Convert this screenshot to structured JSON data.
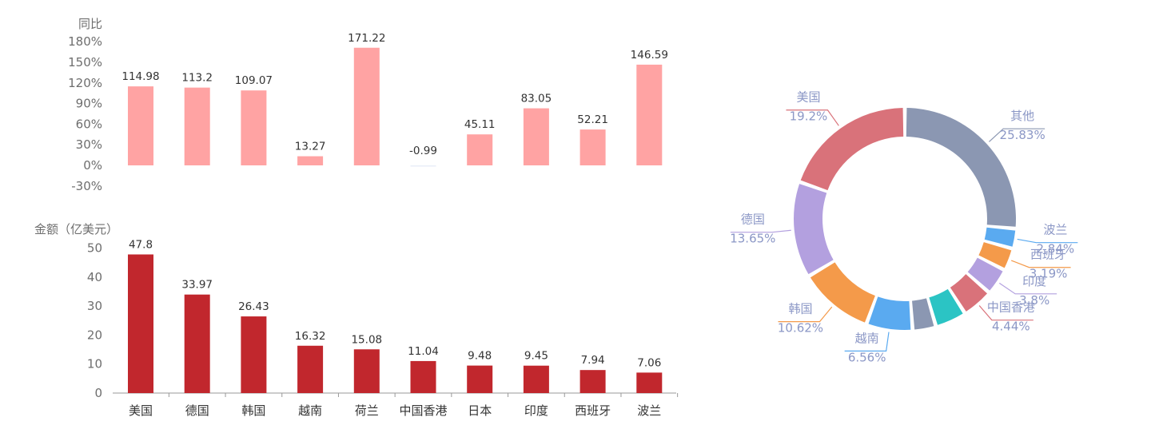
{
  "chart_data": [
    {
      "type": "bar",
      "ylabel": "同比",
      "y_unit": "%",
      "ylim": [
        -30,
        180
      ],
      "yticks": [
        180,
        150,
        120,
        90,
        60,
        30,
        0,
        -30
      ],
      "categories": [
        "美国",
        "德国",
        "韩国",
        "越南",
        "荷兰",
        "中国香港",
        "日本",
        "印度",
        "西班牙",
        "波兰"
      ],
      "values": [
        114.98,
        113.2,
        109.07,
        13.27,
        171.22,
        -0.99,
        45.11,
        83.05,
        52.21,
        146.59
      ],
      "value_labels": [
        "114.98",
        "113.2",
        "109.07",
        "13.27",
        "171.22",
        "-0.99",
        "45.11",
        "83.05",
        "52.21",
        "146.59"
      ],
      "bar_color": "#ffa3a3",
      "negative_bar_color": "#e8eef8"
    },
    {
      "type": "bar",
      "ylabel": "金额（亿美元）",
      "ylim": [
        0,
        50
      ],
      "yticks": [
        50,
        40,
        30,
        20,
        10,
        0
      ],
      "categories": [
        "美国",
        "德国",
        "韩国",
        "越南",
        "荷兰",
        "中国香港",
        "日本",
        "印度",
        "西班牙",
        "波兰"
      ],
      "values": [
        47.8,
        33.97,
        26.43,
        16.32,
        15.08,
        11.04,
        9.48,
        9.45,
        7.94,
        7.06
      ],
      "value_labels": [
        "47.8",
        "33.97",
        "26.43",
        "16.32",
        "15.08",
        "11.04",
        "9.48",
        "9.45",
        "7.94",
        "7.06"
      ],
      "bar_color": "#c1272d"
    },
    {
      "type": "pie",
      "donut": true,
      "slices": [
        {
          "name": "其他",
          "value": 25.83,
          "label": "25.83%",
          "color": "#8b97b2"
        },
        {
          "name": "波兰",
          "value": 2.84,
          "label": "2.84%",
          "color": "#5aaaf0"
        },
        {
          "name": "西班牙",
          "value": 3.19,
          "label": "3.19%",
          "color": "#f49a4a"
        },
        {
          "name": "印度",
          "value": 3.8,
          "label": "3.8%",
          "color": "#b3a0df"
        },
        {
          "name": "中国香港",
          "value": 4.44,
          "label": "4.44%",
          "color": "#d9727a"
        },
        {
          "name": "",
          "value": 4.44,
          "label": "",
          "color": "#2bc4c4"
        },
        {
          "name": "",
          "value": 3.3,
          "label": "",
          "color": "#8b97b2"
        },
        {
          "name": "越南",
          "value": 6.56,
          "label": "6.56%",
          "color": "#5aaaf0"
        },
        {
          "name": "韩国",
          "value": 10.62,
          "label": "10.62%",
          "color": "#f49a4a"
        },
        {
          "name": "德国",
          "value": 13.65,
          "label": "13.65%",
          "color": "#b3a0df"
        },
        {
          "name": "美国",
          "value": 19.2,
          "label": "19.2%",
          "color": "#d9727a"
        }
      ],
      "label_color": "#8b97c6"
    }
  ]
}
